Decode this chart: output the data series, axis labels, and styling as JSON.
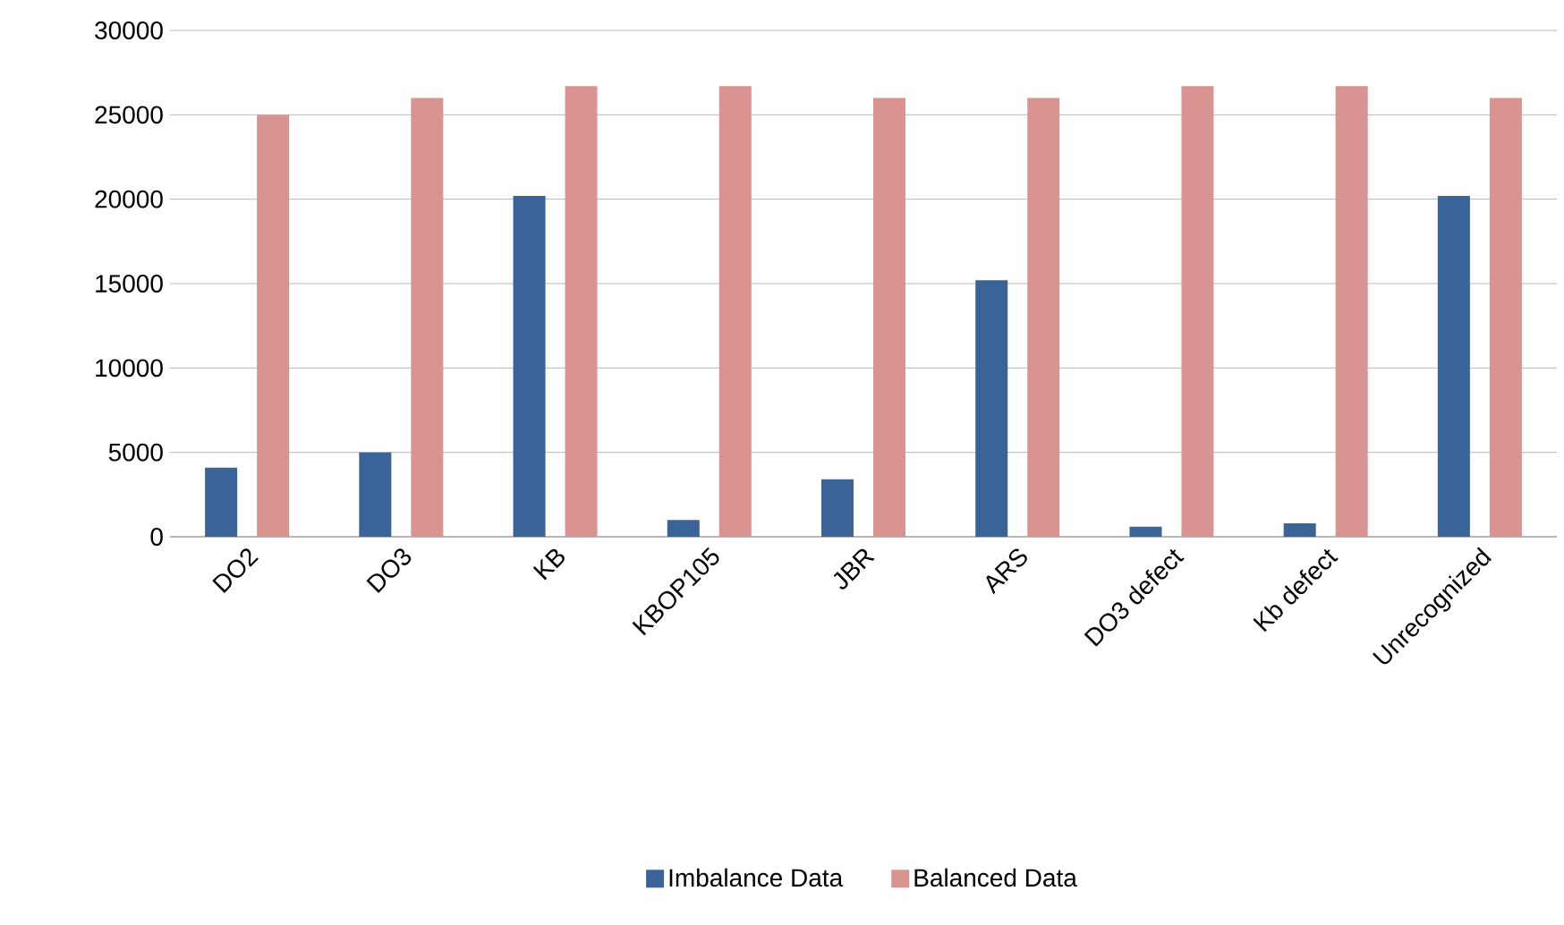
{
  "chart_data": {
    "type": "bar",
    "categories": [
      "DO2",
      "DO3",
      "KB",
      "KBOP105",
      "JBR",
      "ARS",
      "DO3 defect",
      "Kb defect",
      "Unrecognized"
    ],
    "series": [
      {
        "name": "Imbalance Data",
        "color": "#3a6398",
        "values": [
          4100,
          5000,
          20200,
          1000,
          3400,
          15200,
          600,
          800,
          20200
        ]
      },
      {
        "name": "Balanced Data",
        "color": "#d99391",
        "values": [
          25000,
          26000,
          26700,
          26700,
          26000,
          26000,
          26700,
          26700,
          26000
        ]
      }
    ],
    "ylim": [
      0,
      30000
    ],
    "yticks": [
      0,
      5000,
      10000,
      15000,
      20000,
      25000,
      30000
    ],
    "grid": "y",
    "legend": "bottom"
  }
}
